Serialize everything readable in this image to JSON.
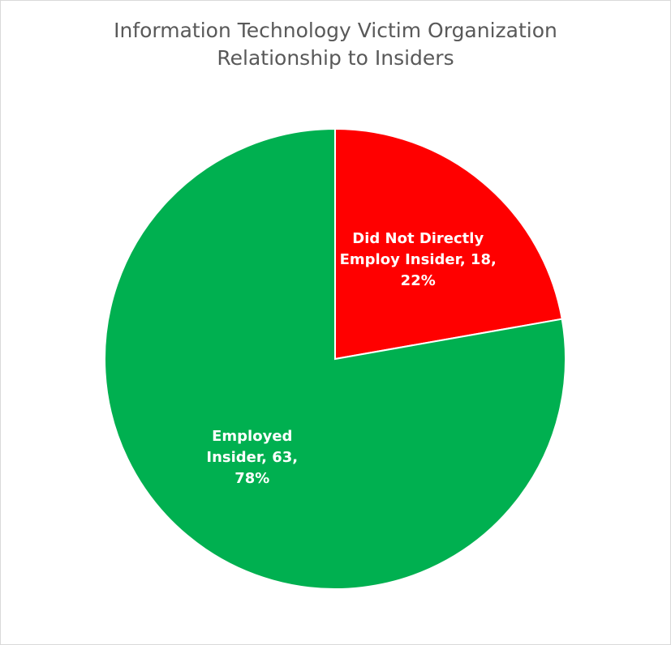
{
  "chart_data": {
    "type": "pie",
    "title_lines": [
      "Information Technology Victim Organization",
      "Relationship to Insiders"
    ],
    "slices": [
      {
        "name": "Did Not Directly Employ Insider",
        "value": 18,
        "percent": "22%",
        "color": "#ff0000",
        "label_lines": [
          "Did Not Directly",
          "Employ Insider, 18,",
          "22%"
        ]
      },
      {
        "name": "Employed Insider",
        "value": 63,
        "percent": "78%",
        "color": "#00b050",
        "label_lines": [
          "Employed",
          "Insider, 63,",
          "78%"
        ]
      }
    ],
    "start_angle": "12 o'clock",
    "direction": "clockwise",
    "legend": "none"
  }
}
